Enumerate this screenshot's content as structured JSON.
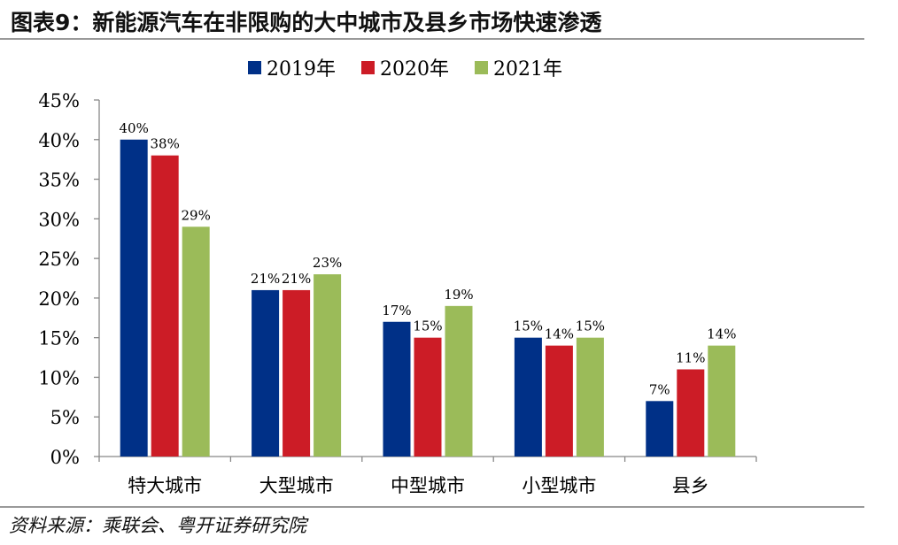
{
  "title": "图表9：新能源汽车在非限购的大中城市及县乡市场快速渗透",
  "source": "资料来源：乘联会、粤开证券研究院",
  "chart_data": {
    "type": "bar",
    "title": "图表9：新能源汽车在非限购的大中城市及县乡市场快速渗透",
    "xlabel": "",
    "ylabel": "",
    "categories": [
      "特大城市",
      "大型城市",
      "中型城市",
      "小型城市",
      "县乡"
    ],
    "series": [
      {
        "name": "2019年",
        "color": "#003087",
        "values": [
          40,
          21,
          17,
          15,
          7
        ]
      },
      {
        "name": "2020年",
        "color": "#cc1c26",
        "values": [
          38,
          21,
          15,
          14,
          11
        ]
      },
      {
        "name": "2021年",
        "color": "#9bbb59",
        "values": [
          29,
          23,
          19,
          15,
          14
        ]
      }
    ],
    "data_labels": [
      [
        "40%",
        "21%",
        "17%",
        "15%",
        "7%"
      ],
      [
        "38%",
        "21%",
        "15%",
        "14%",
        "11%"
      ],
      [
        "29%",
        "23%",
        "19%",
        "15%",
        "14%"
      ]
    ],
    "yticks": [
      0,
      5,
      10,
      15,
      20,
      25,
      30,
      35,
      40,
      45
    ],
    "ytick_labels": [
      "0%",
      "5%",
      "10%",
      "15%",
      "20%",
      "25%",
      "30%",
      "35%",
      "40%",
      "45%"
    ],
    "ylim": [
      0,
      45
    ],
    "grid": false,
    "legend_position": "top-center"
  }
}
